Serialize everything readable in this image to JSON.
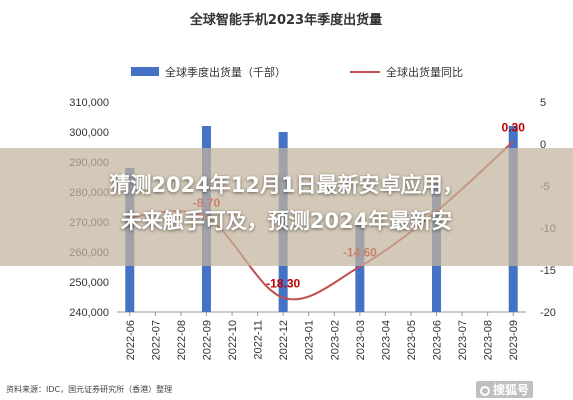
{
  "chart_data": {
    "type": "bar+line",
    "title": "全球智能手机2023年季度出货量",
    "categories": [
      "2022-06",
      "2022-07",
      "2022-08",
      "2022-09",
      "2022-10",
      "2022-11",
      "2022-12",
      "2023-01",
      "2023-02",
      "2023-03",
      "2023-04",
      "2023-05",
      "2023-06",
      "2023-07",
      "2023-08",
      "2023-09"
    ],
    "series": [
      {
        "name": "全球季度出货量（千部）",
        "type": "bar",
        "axis": "left",
        "color": "#4472c4",
        "values": [
          288000,
          null,
          null,
          302000,
          null,
          null,
          300000,
          null,
          null,
          269000,
          null,
          null,
          283000,
          null,
          null,
          302000
        ]
      },
      {
        "name": "全球出货量同比",
        "type": "line",
        "axis": "right",
        "color": "#c0504d",
        "x": [
          "2022-06",
          "2022-09",
          "2022-12",
          "2023-03",
          "2023-06",
          "2023-09"
        ],
        "values": [
          -8.7,
          -8.7,
          -18.3,
          -14.6,
          -8.0,
          0.3
        ]
      }
    ],
    "left_axis": {
      "ylim": [
        240000,
        310000
      ],
      "ticks": [
        "240,000",
        "250,000",
        "260,000",
        "270,000",
        "280,000",
        "290,000",
        "300,000",
        "310,000"
      ]
    },
    "right_axis": {
      "ylim": [
        -20,
        5
      ],
      "ticks": [
        "5",
        "0",
        "-5",
        "-10",
        "-15",
        "-20"
      ]
    },
    "data_labels": [
      {
        "text": "-8.70",
        "index": 3
      },
      {
        "text": "-18.30",
        "index": 6
      },
      {
        "text": "-14.60",
        "index": 9
      },
      {
        "text": "0.30",
        "index": 15
      }
    ],
    "legend_position": "top"
  },
  "overlay": {
    "line1": "猜测2024年12月1日最新安卓应用，",
    "line2": "未来触手可及，预测2024年最新安"
  },
  "source": "资料来源：IDC，国元证券研究所（香港）整理",
  "watermark": "搜狐号 ",
  "colors": {
    "bar": "#4472c4",
    "line": "#c0504d",
    "label": "#c00000"
  }
}
